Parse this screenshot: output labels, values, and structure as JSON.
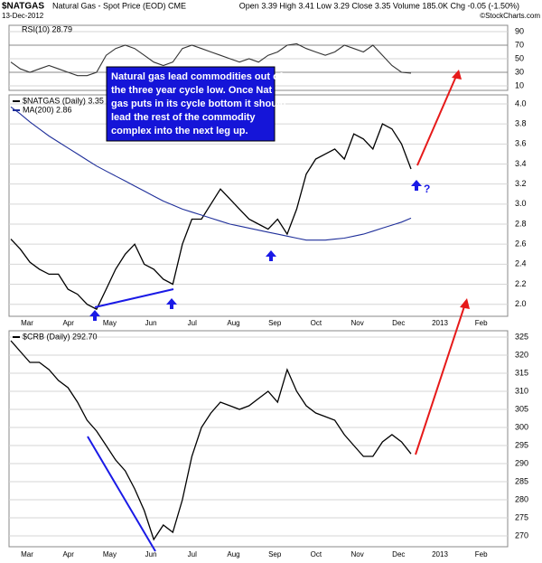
{
  "header": {
    "symbol": "$NATGAS",
    "name": "Natural Gas - Spot Price (EOD) CME",
    "date": "13-Dec-2012",
    "quote": "Open 3.39 High 3.41 Low 3.29 Close 3.35 Volume 185.0K Chg -0.05 (-1.50%)",
    "credit": "©StockCharts.com"
  },
  "chart_data": [
    {
      "type": "line",
      "legend": "RSI(10) 28.79",
      "ylim": [
        3.3,
        99.3
      ],
      "yticks": [
        90,
        70,
        50,
        30,
        10
      ],
      "series": [
        {
          "name": "RSI(10)",
          "color": "#333333",
          "values": [
            45,
            35,
            30,
            35,
            40,
            35,
            30,
            25,
            25,
            30,
            55,
            65,
            70,
            65,
            55,
            45,
            40,
            45,
            65,
            70,
            65,
            60,
            55,
            50,
            45,
            50,
            45,
            55,
            60,
            70,
            72,
            65,
            60,
            55,
            60,
            70,
            65,
            60,
            70,
            55,
            40,
            30,
            28.79
          ]
        }
      ]
    },
    {
      "type": "line",
      "ylim": [
        1.88,
        4.09
      ],
      "yticks": [
        {
          "value": 4,
          "label": "4.0"
        },
        3.8,
        3.6,
        3.4,
        3.2,
        {
          "value": 3,
          "label": "3.0"
        },
        2.8,
        2.6,
        2.4,
        2.2,
        {
          "value": 2,
          "label": "2.0"
        }
      ],
      "x_labels": [
        "Mar",
        "Apr",
        "May",
        "Jun",
        "Jul",
        "Aug",
        "Sep",
        "Oct",
        "Nov",
        "Dec",
        "2013",
        "Feb"
      ],
      "series": [
        {
          "name": "$NATGAS (Daily) 3.35",
          "color": "#000000",
          "values": [
            2.65,
            2.55,
            2.42,
            2.35,
            2.3,
            2.3,
            2.15,
            2.1,
            2.0,
            1.95,
            2.15,
            2.35,
            2.5,
            2.6,
            2.4,
            2.35,
            2.25,
            2.2,
            2.6,
            2.85,
            2.85,
            3.0,
            3.15,
            3.05,
            2.95,
            2.85,
            2.8,
            2.75,
            2.85,
            2.7,
            2.95,
            3.3,
            3.45,
            3.5,
            3.55,
            3.45,
            3.7,
            3.65,
            3.55,
            3.8,
            3.75,
            3.6,
            3.35
          ]
        },
        {
          "name": "MA(200) 2.86",
          "color": "#1f2f9a",
          "values": [
            3.97,
            3.9,
            3.82,
            3.75,
            3.68,
            3.62,
            3.56,
            3.5,
            3.44,
            3.38,
            3.33,
            3.28,
            3.23,
            3.18,
            3.13,
            3.08,
            3.03,
            2.99,
            2.95,
            2.92,
            2.89,
            2.86,
            2.83,
            2.8,
            2.78,
            2.76,
            2.74,
            2.72,
            2.7,
            2.68,
            2.66,
            2.64,
            2.64,
            2.64,
            2.65,
            2.66,
            2.68,
            2.7,
            2.73,
            2.76,
            2.79,
            2.82,
            2.86
          ]
        }
      ],
      "annotation": {
        "lines": [
          "Natural gas lead commodities out of",
          "the three year cycle low. Once Nat",
          "gas puts in its cycle bottom it should",
          "lead the rest of the commodity",
          "complex into the next leg up."
        ],
        "question": "?"
      }
    },
    {
      "type": "line",
      "ylim": [
        267,
        326.75
      ],
      "yticks": [
        325,
        320,
        315,
        310,
        305,
        300,
        295,
        290,
        285,
        280,
        275,
        270
      ],
      "x_labels": [
        "Mar",
        "Apr",
        "May",
        "Jun",
        "Jul",
        "Aug",
        "Sep",
        "Oct",
        "Nov",
        "Dec",
        "2013",
        "Feb"
      ],
      "series": [
        {
          "name": "$CRB (Daily) 292.70",
          "color": "#000000",
          "values": [
            324,
            321,
            318,
            318,
            316,
            313,
            311,
            307,
            302,
            299,
            295,
            291,
            288,
            283,
            277,
            269,
            273,
            271,
            280,
            292,
            300,
            304,
            307,
            306,
            305,
            306,
            308,
            310,
            307,
            316,
            310,
            306,
            304,
            303,
            302,
            298,
            295,
            292,
            292,
            296,
            298,
            296,
            292.7
          ]
        }
      ]
    }
  ]
}
